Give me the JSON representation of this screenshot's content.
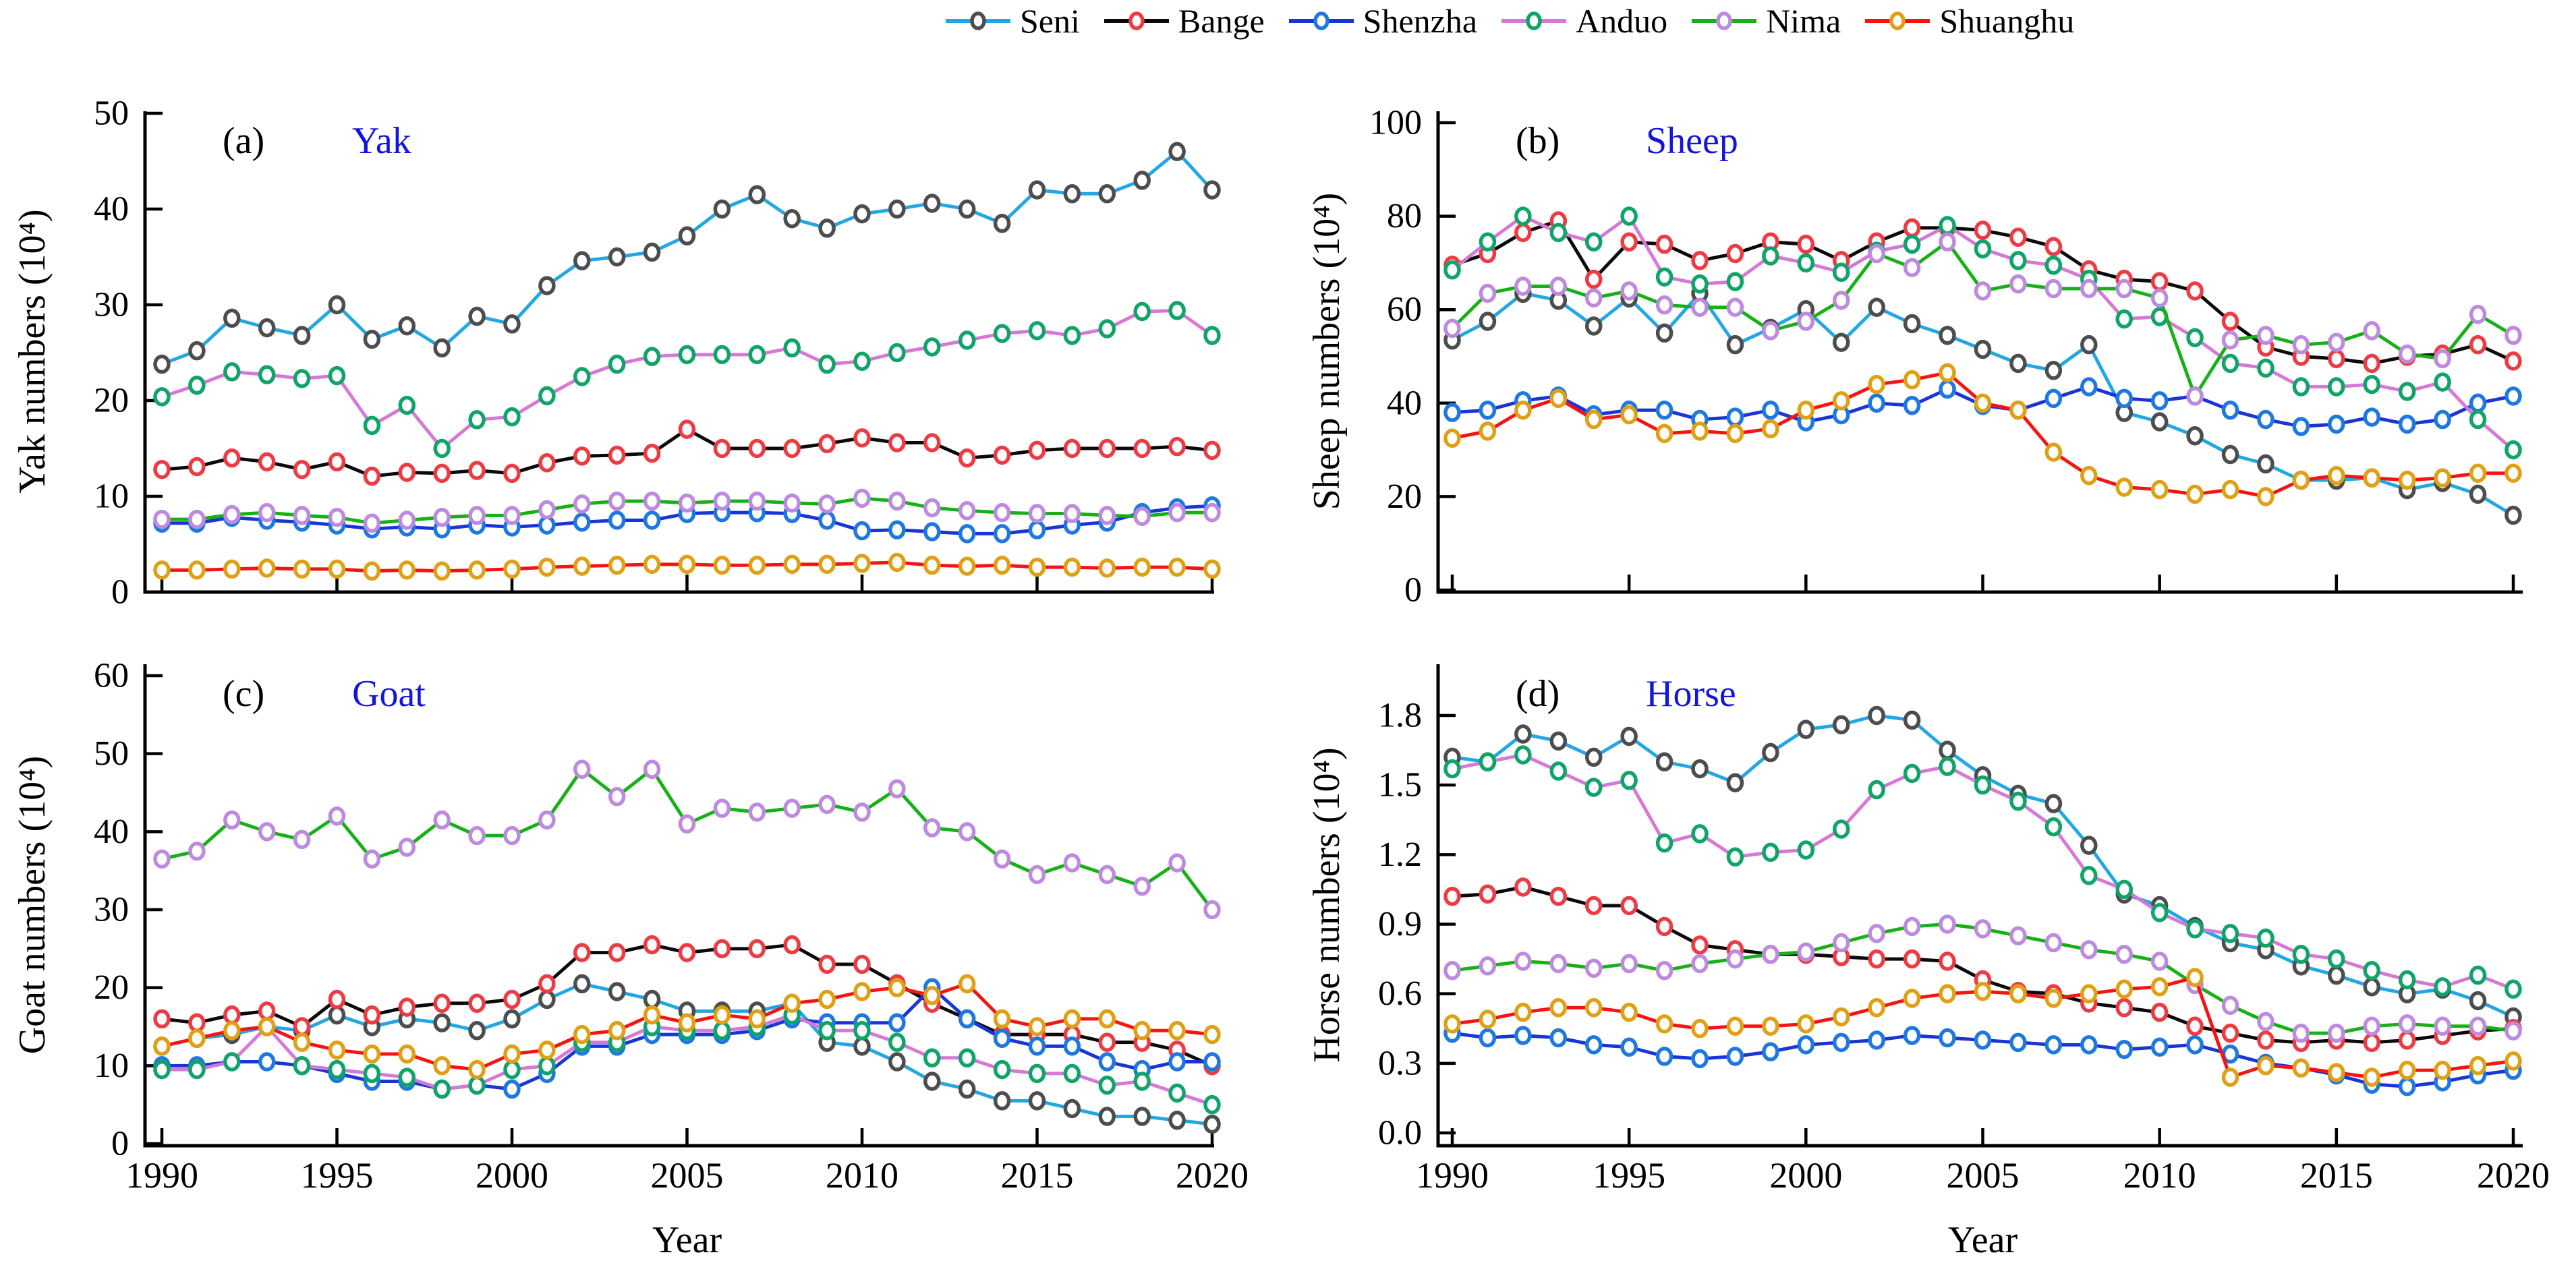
{
  "figure": {
    "background": "#ffffff",
    "xlabel": "Year",
    "legend": {
      "items": [
        {
          "name": "Seni",
          "line_color": "#22A7E5",
          "marker_color": "#4D4D4D"
        },
        {
          "name": "Bange",
          "line_color": "#0A0A0A",
          "marker_color": "#EE3B43"
        },
        {
          "name": "Shenzha",
          "line_color": "#1A35D6",
          "marker_color": "#1E78E0"
        },
        {
          "name": "Anduo",
          "line_color": "#D678D6",
          "marker_color": "#0FA468"
        },
        {
          "name": "Nima",
          "line_color": "#17B117",
          "marker_color": "#BE8AE0"
        },
        {
          "name": "Shuanghu",
          "line_color": "#F51414",
          "marker_color": "#DFA014"
        }
      ]
    }
  },
  "years": [
    1990,
    1991,
    1992,
    1993,
    1994,
    1995,
    1996,
    1997,
    1998,
    1999,
    2000,
    2001,
    2002,
    2003,
    2004,
    2005,
    2006,
    2007,
    2008,
    2009,
    2010,
    2011,
    2012,
    2013,
    2014,
    2015,
    2016,
    2017,
    2018,
    2019,
    2020
  ],
  "chart_data": [
    {
      "type": "line",
      "panel": "a",
      "panel_letter": "(a)",
      "title": "Yak",
      "title_color": "#1414E0",
      "ylabel": "Yak numbers (10⁴)",
      "xlabel": "",
      "xticks": [
        1990,
        1995,
        2000,
        2005,
        2010,
        2015,
        2020
      ],
      "show_x_tick_labels": false,
      "ytick_labels": [
        "0",
        "10",
        "20",
        "30",
        "40",
        "50"
      ],
      "ylim": [
        0,
        50
      ],
      "legend_position": "top",
      "grid": false,
      "series": [
        {
          "name": "Seni",
          "values": [
            23.8,
            25.2,
            28.6,
            27.6,
            26.8,
            30,
            26.4,
            27.8,
            25.5,
            28.8,
            28,
            32,
            34.6,
            35,
            35.5,
            37.2,
            40,
            41.5,
            39,
            38,
            39.5,
            40,
            40.6,
            40,
            38.5,
            42,
            41.6,
            41.6,
            43,
            46,
            42
          ]
        },
        {
          "name": "Bange",
          "values": [
            12.8,
            13.1,
            14,
            13.6,
            12.8,
            13.6,
            12.1,
            12.5,
            12.4,
            12.7,
            12.4,
            13.5,
            14.2,
            14.3,
            14.5,
            17,
            15,
            15,
            15,
            15.5,
            16.1,
            15.6,
            15.6,
            14,
            14.3,
            14.8,
            15,
            15,
            15,
            15.2,
            14.8
          ]
        },
        {
          "name": "Shenzha",
          "values": [
            7.2,
            7.2,
            7.8,
            7.5,
            7.3,
            7,
            6.6,
            6.8,
            6.6,
            7,
            6.8,
            7,
            7.3,
            7.5,
            7.5,
            8.2,
            8.3,
            8.3,
            8.2,
            7.5,
            6.4,
            6.5,
            6.3,
            6.1,
            6.1,
            6.5,
            7,
            7.3,
            8.3,
            8.8,
            9
          ]
        },
        {
          "name": "Anduo",
          "values": [
            20.4,
            21.6,
            23,
            22.7,
            22.3,
            22.6,
            17.4,
            19.5,
            15,
            18,
            18.3,
            20.5,
            22.5,
            23.8,
            24.6,
            24.8,
            24.8,
            24.8,
            25.5,
            23.8,
            24.1,
            25,
            25.6,
            26.3,
            27,
            27.3,
            26.8,
            27.5,
            29.3,
            29.4,
            26.8
          ]
        },
        {
          "name": "Nima",
          "values": [
            7.6,
            7.6,
            8.1,
            8.3,
            8,
            7.8,
            7.2,
            7.5,
            7.8,
            8,
            8,
            8.6,
            9.2,
            9.5,
            9.5,
            9.3,
            9.5,
            9.5,
            9.3,
            9.2,
            9.8,
            9.5,
            8.8,
            8.5,
            8.3,
            8.2,
            8.2,
            8,
            7.9,
            8.3,
            8.3
          ]
        },
        {
          "name": "Shuanghu",
          "values": [
            2.3,
            2.3,
            2.4,
            2.5,
            2.4,
            2.4,
            2.2,
            2.3,
            2.2,
            2.3,
            2.4,
            2.6,
            2.7,
            2.8,
            2.9,
            2.9,
            2.8,
            2.8,
            2.9,
            2.9,
            3,
            3.1,
            2.8,
            2.7,
            2.8,
            2.6,
            2.6,
            2.5,
            2.6,
            2.6,
            2.4
          ]
        }
      ]
    },
    {
      "type": "line",
      "panel": "b",
      "panel_letter": "(b)",
      "title": "Sheep",
      "title_color": "#1414E0",
      "ylabel": "Sheep numbers (10⁴)",
      "xlabel": "",
      "xticks": [
        1990,
        1995,
        2000,
        2005,
        2010,
        2015,
        2020
      ],
      "show_x_tick_labels": false,
      "ytick_labels": [
        "0",
        "20",
        "40",
        "60",
        "80",
        "100"
      ],
      "ylim": [
        0,
        100
      ],
      "grid": false,
      "series": [
        {
          "name": "Seni",
          "values": [
            53.5,
            57.5,
            63.5,
            62,
            56.5,
            62.5,
            55,
            63.5,
            52.5,
            56,
            60,
            53,
            60.5,
            57,
            54.5,
            51.5,
            48.5,
            47,
            52.5,
            38,
            36,
            33,
            29,
            27,
            23.5,
            23.5,
            24,
            21.5,
            23,
            20.5,
            16
          ]
        },
        {
          "name": "Bange",
          "values": [
            69.5,
            72,
            76.5,
            79,
            66.5,
            74.5,
            74,
            70.5,
            72,
            74.5,
            74,
            70.5,
            74.5,
            77.5,
            77.5,
            77,
            75.5,
            73.5,
            68.5,
            66.5,
            66,
            64,
            57.5,
            52,
            50,
            49.5,
            48.5,
            50,
            50.5,
            52.5,
            49
          ]
        },
        {
          "name": "Shenzha",
          "values": [
            38,
            38.5,
            40.5,
            41.5,
            37.5,
            38.5,
            38.5,
            36.5,
            37,
            38.5,
            36,
            37.5,
            40,
            39.5,
            43,
            39.5,
            38.5,
            41,
            43.5,
            41,
            40.5,
            41.5,
            38.5,
            36.5,
            35,
            35.5,
            37,
            35.5,
            36.5,
            40,
            41.5
          ]
        },
        {
          "name": "Anduo",
          "values": [
            68.5,
            74.5,
            80,
            76.5,
            74.5,
            80,
            67,
            65.5,
            66,
            71.5,
            70,
            68,
            72.5,
            74,
            78,
            73,
            70.5,
            69.5,
            66.5,
            58,
            58.5,
            54,
            48.5,
            47.5,
            43.5,
            43.5,
            44,
            42.5,
            44.5,
            36.5,
            30
          ]
        },
        {
          "name": "Nima",
          "values": [
            56,
            63.5,
            65,
            65,
            62.5,
            64,
            61,
            60.5,
            60.5,
            55.5,
            57.5,
            62,
            72,
            69,
            74.5,
            64,
            65.5,
            64.5,
            64.5,
            64.5,
            62.5,
            41.5,
            53.5,
            54.5,
            52.5,
            53,
            55.5,
            50.5,
            49.5,
            59,
            54.5
          ]
        },
        {
          "name": "Shuanghu",
          "values": [
            32.5,
            34,
            38.5,
            41,
            36.5,
            37.5,
            33.5,
            34,
            33.5,
            34.5,
            38.5,
            40.5,
            44,
            45,
            46.5,
            40,
            38.5,
            29.5,
            24.5,
            22,
            21.5,
            20.5,
            21.5,
            20,
            23.5,
            24.5,
            24,
            23.5,
            24,
            25,
            25
          ]
        }
      ]
    },
    {
      "type": "line",
      "panel": "c",
      "panel_letter": "(c)",
      "title": "Goat",
      "title_color": "#1414E0",
      "ylabel": "Goat numbers (10⁴)",
      "xlabel": "Year",
      "xticks": [
        1990,
        1995,
        2000,
        2005,
        2010,
        2015,
        2020
      ],
      "show_x_tick_labels": true,
      "ytick_labels": [
        "0",
        "10",
        "20",
        "30",
        "40",
        "50",
        "60"
      ],
      "ylim": [
        0,
        60
      ],
      "grid": false,
      "series": [
        {
          "name": "Seni",
          "values": [
            12.5,
            13.5,
            14,
            15,
            14.5,
            16.5,
            15,
            16,
            15.5,
            14.5,
            16,
            18.5,
            20.5,
            19.5,
            18.5,
            17,
            17,
            17,
            18,
            13,
            12.5,
            10.5,
            8,
            7,
            5.5,
            5.5,
            4.5,
            3.5,
            3.5,
            3,
            2.5
          ]
        },
        {
          "name": "Bange",
          "values": [
            16,
            15.5,
            16.5,
            17,
            15,
            18.5,
            16.5,
            17.5,
            18,
            18,
            18.5,
            20.5,
            24.5,
            24.5,
            25.5,
            24.5,
            25,
            25,
            25.5,
            23,
            23,
            20.5,
            18,
            16,
            14,
            14,
            14,
            13,
            13,
            12,
            10
          ]
        },
        {
          "name": "Shenzha",
          "values": [
            10,
            10,
            10.5,
            10.5,
            10,
            9,
            8,
            8,
            7,
            7.5,
            7,
            9,
            12.5,
            12.5,
            14,
            14,
            14,
            14.5,
            16,
            15.5,
            15.5,
            15.5,
            20,
            16,
            13.5,
            12.5,
            12.5,
            10.5,
            9.5,
            10.5,
            10.5
          ]
        },
        {
          "name": "Anduo",
          "values": [
            9.5,
            9.5,
            10.5,
            15,
            10,
            9.5,
            9,
            8.5,
            7,
            7.5,
            9.5,
            10,
            13,
            13,
            15,
            14.5,
            14.5,
            15,
            16.5,
            14.5,
            14.5,
            13,
            11,
            11,
            9.5,
            9,
            9,
            7.5,
            8,
            6.5,
            5
          ]
        },
        {
          "name": "Nima",
          "values": [
            36.5,
            37.5,
            41.5,
            40,
            39,
            42,
            36.5,
            38,
            41.5,
            39.5,
            39.5,
            41.5,
            48,
            44.5,
            48,
            41,
            43,
            42.5,
            43,
            43.5,
            42.5,
            45.5,
            40.5,
            40,
            36.5,
            34.5,
            36,
            34.5,
            33,
            36,
            30
          ]
        },
        {
          "name": "Shuanghu",
          "values": [
            12.5,
            13.5,
            14.5,
            15,
            13,
            12,
            11.5,
            11.5,
            10,
            9.5,
            11.5,
            12,
            14,
            14.5,
            16.5,
            15.5,
            16.5,
            16,
            18,
            18.5,
            19.5,
            20,
            19,
            20.5,
            16,
            15,
            16,
            16,
            14.5,
            14.5,
            14
          ]
        }
      ]
    },
    {
      "type": "line",
      "panel": "d",
      "panel_letter": "(d)",
      "title": "Horse",
      "title_color": "#1414E0",
      "ylabel": "Horse numbers (10⁴)",
      "xlabel": "Year",
      "xticks": [
        1990,
        1995,
        2000,
        2005,
        2010,
        2015,
        2020
      ],
      "show_x_tick_labels": true,
      "ytick_labels": [
        "0.0",
        "0.3",
        "0.6",
        "0.9",
        "1.2",
        "1.5",
        "1.8"
      ],
      "ylim": [
        0,
        1.8
      ],
      "grid": false,
      "series": [
        {
          "name": "Seni",
          "values": [
            1.62,
            1.6,
            1.72,
            1.69,
            1.62,
            1.71,
            1.6,
            1.57,
            1.51,
            1.64,
            1.74,
            1.76,
            1.8,
            1.78,
            1.65,
            1.54,
            1.46,
            1.42,
            1.24,
            1.03,
            0.98,
            0.89,
            0.82,
            0.79,
            0.72,
            0.68,
            0.63,
            0.6,
            0.62,
            0.57,
            0.5
          ]
        },
        {
          "name": "Bange",
          "values": [
            1.02,
            1.03,
            1.06,
            1.02,
            0.98,
            0.98,
            0.89,
            0.81,
            0.79,
            0.77,
            0.77,
            0.76,
            0.75,
            0.75,
            0.74,
            0.66,
            0.61,
            0.6,
            0.56,
            0.54,
            0.52,
            0.46,
            0.43,
            0.4,
            0.39,
            0.4,
            0.39,
            0.4,
            0.42,
            0.44,
            0.45
          ]
        },
        {
          "name": "Shenzha",
          "values": [
            0.43,
            0.41,
            0.42,
            0.41,
            0.38,
            0.37,
            0.33,
            0.32,
            0.33,
            0.35,
            0.38,
            0.39,
            0.4,
            0.42,
            0.41,
            0.4,
            0.39,
            0.38,
            0.38,
            0.36,
            0.37,
            0.38,
            0.34,
            0.3,
            0.28,
            0.25,
            0.21,
            0.2,
            0.22,
            0.25,
            0.27
          ]
        },
        {
          "name": "Anduo",
          "values": [
            1.57,
            1.6,
            1.63,
            1.56,
            1.49,
            1.52,
            1.25,
            1.29,
            1.19,
            1.21,
            1.22,
            1.31,
            1.48,
            1.55,
            1.58,
            1.5,
            1.43,
            1.32,
            1.11,
            1.05,
            0.95,
            0.88,
            0.86,
            0.84,
            0.77,
            0.75,
            0.7,
            0.66,
            0.63,
            0.68,
            0.62
          ]
        },
        {
          "name": "Nima",
          "values": [
            0.7,
            0.72,
            0.74,
            0.73,
            0.71,
            0.73,
            0.7,
            0.73,
            0.75,
            0.77,
            0.78,
            0.82,
            0.86,
            0.89,
            0.9,
            0.88,
            0.85,
            0.82,
            0.79,
            0.77,
            0.74,
            0.64,
            0.55,
            0.48,
            0.43,
            0.43,
            0.46,
            0.47,
            0.46,
            0.46,
            0.44
          ]
        },
        {
          "name": "Shuanghu",
          "values": [
            0.47,
            0.49,
            0.52,
            0.54,
            0.54,
            0.52,
            0.47,
            0.45,
            0.46,
            0.46,
            0.47,
            0.5,
            0.54,
            0.58,
            0.6,
            0.61,
            0.6,
            0.58,
            0.6,
            0.62,
            0.63,
            0.67,
            0.24,
            0.29,
            0.28,
            0.26,
            0.24,
            0.27,
            0.27,
            0.29,
            0.31
          ]
        }
      ]
    }
  ]
}
